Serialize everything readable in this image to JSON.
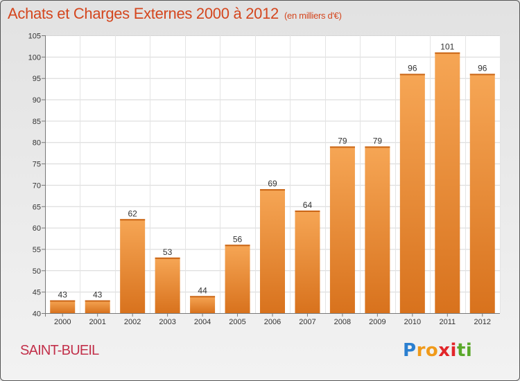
{
  "title": "Achats et Charges Externes 2000 à 2012",
  "title_unit": "(en milliers d'€)",
  "commune": "SAINT-BUEIL",
  "logo": {
    "letters": [
      "P",
      "r",
      "o",
      "x",
      "i",
      "t",
      "i"
    ],
    "colors": [
      "#2a7fd0",
      "#f09a1a",
      "#f09a1a",
      "#e2262a",
      "#e2262a",
      "#5aa82a",
      "#5aa82a"
    ]
  },
  "colors": {
    "title": "#d4461e",
    "commune": "#c2304a",
    "bar_light": "#f6a655",
    "bar_dark": "#d8721d"
  },
  "chart_data": {
    "type": "bar",
    "categories": [
      "2000",
      "2001",
      "2002",
      "2003",
      "2004",
      "2005",
      "2006",
      "2007",
      "2008",
      "2009",
      "2010",
      "2011",
      "2012"
    ],
    "values": [
      43,
      43,
      62,
      53,
      44,
      56,
      69,
      64,
      79,
      79,
      96,
      101,
      96
    ],
    "ylim": [
      40,
      105
    ],
    "yticks": [
      40,
      45,
      50,
      55,
      60,
      65,
      70,
      75,
      80,
      85,
      90,
      95,
      100,
      105
    ],
    "grid": true,
    "title": "Achats et Charges Externes 2000 à 2012",
    "xlabel": "",
    "ylabel": ""
  }
}
